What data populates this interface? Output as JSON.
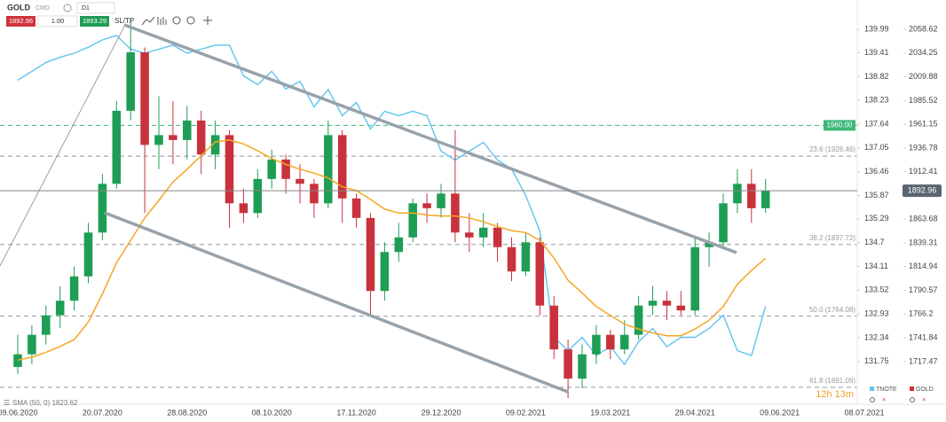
{
  "chart_data": {
    "type": "candlestick",
    "toolbar": {
      "symbol": "GOLD",
      "market": "CMD",
      "interval": "D1",
      "bid": "1892.96",
      "volume": "1.00",
      "ask": "1893.29",
      "sltp": "SL/TP"
    },
    "categories": [
      "09.06.2020",
      null,
      null,
      null,
      null,
      null,
      "20.07.2020",
      null,
      null,
      null,
      null,
      null,
      "28.08.2020",
      null,
      null,
      null,
      null,
      null,
      "08.10.2020",
      null,
      null,
      null,
      null,
      null,
      "17.11.2020",
      null,
      null,
      null,
      null,
      null,
      "29.12.2020",
      null,
      null,
      null,
      null,
      null,
      "09.02.2021",
      null,
      null,
      null,
      null,
      null,
      "19.03.2021",
      null,
      null,
      null,
      null,
      null,
      "29.04.2021",
      null,
      null,
      null,
      null,
      null,
      "09.06.2021",
      null,
      null,
      null,
      null,
      null,
      "08.07.2021"
    ],
    "candles": {
      "name": "GOLD",
      "up_color": "#1e9e55",
      "down_color": "#c8323c",
      "open": [
        1712,
        1725,
        1745,
        1765,
        1780,
        1805,
        1850,
        1900,
        1975,
        2035,
        1940,
        1950,
        1945,
        1965,
        1930,
        1950,
        1880,
        1870,
        1905,
        1925,
        1905,
        1900,
        1880,
        1950,
        1885,
        1865,
        1790,
        1830,
        1845,
        1880,
        1875,
        1890,
        1850,
        1845,
        1855,
        1835,
        1810,
        1840,
        1775,
        1730,
        1700,
        1725,
        1745,
        1730,
        1745,
        1775,
        1780,
        1775,
        1770,
        1835,
        1840,
        1880,
        1900,
        1875,
        null,
        null,
        null,
        null,
        null,
        null,
        null
      ],
      "high": [
        1745,
        1755,
        1775,
        1795,
        1815,
        1860,
        1910,
        1985,
        2070,
        2040,
        1990,
        1985,
        1980,
        1975,
        1965,
        1955,
        1895,
        1915,
        1935,
        1930,
        1920,
        1905,
        1965,
        1955,
        1890,
        1870,
        1840,
        1860,
        1885,
        1890,
        1900,
        1955,
        1870,
        1870,
        1860,
        1845,
        1850,
        1845,
        1785,
        1740,
        1735,
        1755,
        1750,
        1760,
        1785,
        1795,
        1790,
        1790,
        1845,
        1850,
        1890,
        1915,
        1915,
        1905,
        null,
        null,
        null,
        null,
        null,
        null,
        null
      ],
      "low": [
        1705,
        1715,
        1735,
        1752,
        1770,
        1798,
        1842,
        1895,
        1965,
        1870,
        1915,
        1920,
        1925,
        1910,
        1915,
        1855,
        1860,
        1865,
        1895,
        1890,
        1880,
        1865,
        1875,
        1860,
        1855,
        1765,
        1780,
        1820,
        1840,
        1860,
        1865,
        1840,
        1830,
        1835,
        1820,
        1800,
        1805,
        1765,
        1720,
        1680,
        1690,
        1715,
        1720,
        1725,
        1740,
        1765,
        1760,
        1765,
        1765,
        1815,
        1835,
        1870,
        1860,
        1870,
        null,
        null,
        null,
        null,
        null,
        null,
        null
      ],
      "close": [
        1725,
        1745,
        1765,
        1780,
        1805,
        1850,
        1900,
        1975,
        2035,
        1940,
        1950,
        1945,
        1965,
        1930,
        1950,
        1880,
        1870,
        1905,
        1925,
        1905,
        1900,
        1880,
        1950,
        1885,
        1865,
        1790,
        1830,
        1845,
        1880,
        1875,
        1890,
        1850,
        1845,
        1855,
        1835,
        1810,
        1840,
        1775,
        1730,
        1700,
        1725,
        1745,
        1730,
        1745,
        1775,
        1780,
        1775,
        1770,
        1835,
        1840,
        1880,
        1900,
        1875,
        1892.96,
        null,
        null,
        null,
        null,
        null,
        null,
        null
      ]
    },
    "series": [
      {
        "name": "TNOTE",
        "color": "#5ec4ee",
        "axis": "y2",
        "values": [
          138.73,
          138.95,
          139.17,
          139.3,
          139.4,
          139.55,
          139.73,
          139.84,
          139.5,
          139.4,
          139.5,
          139.6,
          139.4,
          139.5,
          139.6,
          139.6,
          138.84,
          138.62,
          138.95,
          138.51,
          138.7,
          138.07,
          138.5,
          137.85,
          138.18,
          137.52,
          137.96,
          137.85,
          137.96,
          137.85,
          136.97,
          136.75,
          136.97,
          137.19,
          136.75,
          136.53,
          135.87,
          134.99,
          132.35,
          132.02,
          132.35,
          131.9,
          132.12,
          131.68,
          132.24,
          132.57,
          132.12,
          132.35,
          132.35,
          132.57,
          132.9,
          132.02,
          131.9,
          133.12,
          null,
          null,
          null,
          null,
          null,
          null,
          null
        ]
      }
    ],
    "indicators": [
      {
        "name": "SMA (50, 0) 1823.62",
        "color": "#f5a623",
        "values": [
          1719,
          1722,
          1727,
          1733,
          1740,
          1758,
          1787,
          1819,
          1842,
          1865,
          1883,
          1902,
          1915,
          1929,
          1943,
          1945,
          1941,
          1934,
          1926,
          1920,
          1915,
          1911,
          1906,
          1897,
          1893,
          1884,
          1874,
          1870,
          1870,
          1868,
          1867,
          1867,
          1865,
          1861,
          1856,
          1852,
          1850,
          1842,
          1824,
          1801,
          1788,
          1774,
          1765,
          1756,
          1751,
          1747,
          1744,
          1744,
          1751,
          1760,
          1774,
          1797,
          1811,
          1823.62,
          null,
          null,
          null,
          null,
          null,
          null,
          null
        ]
      }
    ],
    "legend_colors": {
      "TNOTE": "#5ec4ee",
      "GOLD": "#d32f2f"
    },
    "ylim": [
      1673.69,
      2088.72
    ],
    "yticks": [
      2058.62,
      2034.25,
      2009.88,
      1985.52,
      1961.15,
      1936.78,
      1912.41,
      1863.68,
      1839.31,
      1814.94,
      1790.57,
      1766.2,
      1741.84,
      1717.47
    ],
    "y2lim": [
      130.69,
      140.72
    ],
    "y2ticks": [
      139.99,
      139.41,
      138.82,
      138.23,
      137.64,
      137.05,
      136.46,
      135.87,
      135.29,
      134.7,
      134.11,
      133.52,
      132.93,
      132.34,
      131.75
    ],
    "levels": [
      {
        "value": 1960,
        "label": "1960.00",
        "color": "#3cb878"
      },
      {
        "value": 1928.46,
        "label": "23.6 (1928.46)",
        "color": "#8f98a0"
      },
      {
        "value": 1837.72,
        "label": "38.2 (1837.72)",
        "color": "#8f98a0"
      },
      {
        "value": 1764.08,
        "label": "50.0 (1764.08)",
        "color": "#8f98a0"
      },
      {
        "value": 1691.09,
        "label": "61.8 (1691.09)",
        "color": "#8f98a0"
      }
    ],
    "timer": "12h 13m"
  }
}
